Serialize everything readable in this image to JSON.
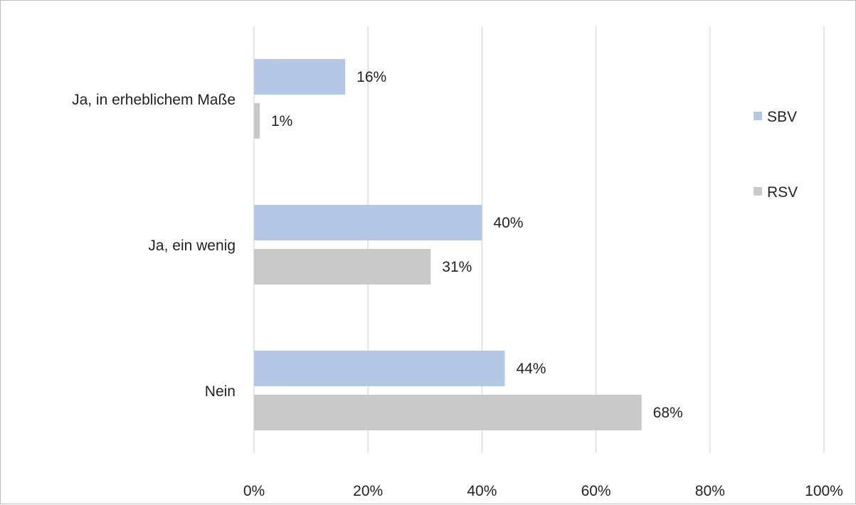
{
  "chart_data": {
    "type": "bar",
    "orientation": "horizontal",
    "categories": [
      "Ja, in erheblichem Maße",
      "Ja, ein wenig",
      "Nein"
    ],
    "series": [
      {
        "name": "SBV",
        "values": [
          16,
          40,
          44
        ],
        "labels": [
          "16%",
          "40%",
          "44%"
        ],
        "color": "#b4c7e7"
      },
      {
        "name": "RSV",
        "values": [
          1,
          31,
          68
        ],
        "labels": [
          "1%",
          "31%",
          "68%"
        ],
        "color": "#c9c9c9"
      }
    ],
    "xlim": [
      0,
      100
    ],
    "xticks": [
      "0%",
      "20%",
      "40%",
      "60%",
      "80%",
      "100%"
    ],
    "grid": true,
    "legend_position": "right"
  }
}
